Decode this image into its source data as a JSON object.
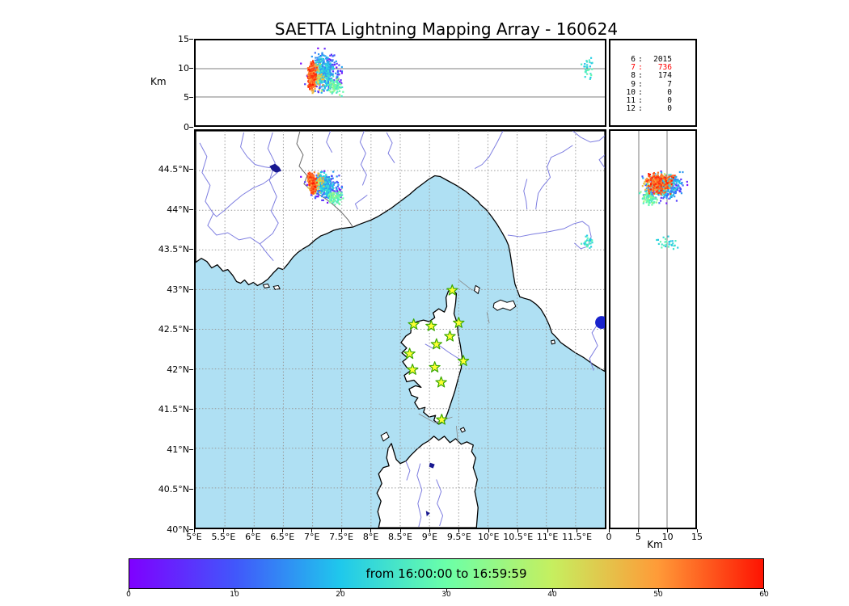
{
  "title": "SAETTA Lightning Mapping Array - 160624",
  "top_panel": {
    "ylabel": "Km",
    "ytick_values": [
      15,
      10,
      5,
      0
    ],
    "grid_alts": [
      5,
      10
    ],
    "alt_range": [
      0,
      15
    ]
  },
  "stats_panel": {
    "rows": [
      {
        "label": "6",
        "value": "2015",
        "color": "#000000"
      },
      {
        "label": "7",
        "value": "736",
        "color": "#ff0000"
      },
      {
        "label": "8",
        "value": "174",
        "color": "#000000"
      },
      {
        "label": "9",
        "value": "7",
        "color": "#000000"
      },
      {
        "label": "10",
        "value": "0",
        "color": "#000000"
      },
      {
        "label": "11",
        "value": "0",
        "color": "#000000"
      },
      {
        "label": "12",
        "value": "0",
        "color": "#000000"
      }
    ]
  },
  "map_panel": {
    "lon_tick_values": [
      5,
      5.5,
      6,
      6.5,
      7,
      7.5,
      8,
      8.5,
      9,
      9.5,
      10,
      10.5,
      11,
      11.5
    ],
    "lon_tick_labels": [
      "5°E",
      "5.5°E",
      "6°E",
      "6.5°E",
      "7°E",
      "7.5°E",
      "8°E",
      "8.5°E",
      "9°E",
      "9.5°E",
      "10°E",
      "10.5°E",
      "11°E",
      "11.5°E"
    ],
    "lat_tick_values": [
      44.5,
      44,
      43.5,
      43,
      42.5,
      42,
      41.5,
      41,
      40.5,
      40
    ],
    "lat_tick_labels": [
      "44.5°N",
      "44°N",
      "43.5°N",
      "43°N",
      "42.5°N",
      "42°N",
      "41.5°N",
      "41°N",
      "40.5°N",
      "40°N"
    ],
    "lon_range": [
      5,
      12
    ],
    "lat_range": [
      40,
      45
    ],
    "sea_color": "#afe0f3",
    "land_color": "#ffffff",
    "coast_color": "#000000",
    "river_color": "#7d7de0",
    "border_color": "#666666",
    "grid_color": "#999999",
    "lake_color": "#1822cc",
    "station_fill": "#ffff33",
    "station_stroke": "#39a800"
  },
  "right_panel": {
    "xlabel": "Km",
    "xtick_values": [
      0,
      5,
      10,
      15
    ],
    "grid_alts": [
      5,
      10
    ],
    "alt_range": [
      0,
      15
    ]
  },
  "colorbar": {
    "label": "from 16:00:00 to 16:59:59",
    "tick_values": [
      0,
      10,
      20,
      30,
      40,
      50,
      60
    ],
    "range": [
      0,
      60
    ],
    "stops": [
      "#7f00ff",
      "#4157fb",
      "#1fc8ec",
      "#6bffa8",
      "#c6ef5f",
      "#ff9b38",
      "#fe1302"
    ]
  },
  "chart_data": {
    "type": "scatter",
    "title": "SAETTA Lightning Mapping Array - 160624",
    "date_label": "160624",
    "time_window": {
      "from": "16:00:00",
      "to": "16:59:59"
    },
    "colorbar": {
      "label": "from 16:00:00 to 16:59:59",
      "units_range": [
        0,
        60
      ]
    },
    "panels": [
      {
        "name": "altitude-vs-longitude",
        "ylabel": "Km",
        "xlim": [
          5,
          12
        ],
        "ylim": [
          0,
          15
        ],
        "grid_alts": [
          5,
          10
        ]
      },
      {
        "name": "map",
        "xlim": [
          5,
          12
        ],
        "ylim": [
          40,
          45
        ],
        "grid_step_deg": 0.5
      },
      {
        "name": "altitude-vs-latitude",
        "xlabel": "Km",
        "xlim": [
          0,
          15
        ],
        "ylim": [
          40,
          45
        ],
        "grid_alts": [
          5,
          10
        ]
      }
    ],
    "sources_by_station_count": {
      "6": 2015,
      "7": 736,
      "8": 174,
      "9": 7,
      "10": 0,
      "11": 0,
      "12": 0
    },
    "stations_lonlat": [
      [
        9.39,
        42.99
      ],
      [
        8.73,
        42.56
      ],
      [
        9.03,
        42.54
      ],
      [
        9.5,
        42.58
      ],
      [
        9.35,
        42.41
      ],
      [
        9.12,
        42.31
      ],
      [
        8.66,
        42.19
      ],
      [
        9.58,
        42.1
      ],
      [
        8.71,
        41.99
      ],
      [
        9.09,
        42.02
      ],
      [
        9.2,
        41.83
      ],
      [
        9.21,
        41.36
      ]
    ],
    "clusters": [
      {
        "name": "storm-early-purple",
        "n": 40,
        "lon": [
          7.18,
          0.16
        ],
        "lat": [
          44.31,
          0.11
        ],
        "alt": [
          4.5,
          13.8
        ],
        "t": [
          0,
          8
        ]
      },
      {
        "name": "storm-purple-knot",
        "n": 14,
        "lon": [
          7.45,
          0.03
        ],
        "lat": [
          44.22,
          0.03
        ],
        "alt": [
          6.5,
          10
        ],
        "t": [
          0,
          6
        ]
      },
      {
        "name": "storm-blue",
        "n": 150,
        "lon": [
          7.22,
          0.11
        ],
        "lat": [
          44.3,
          0.08
        ],
        "alt": [
          5,
          13.4
        ],
        "t": [
          5,
          18
        ]
      },
      {
        "name": "storm-cyan-north",
        "n": 150,
        "lon": [
          7.14,
          0.06
        ],
        "lat": [
          44.36,
          0.05
        ],
        "alt": [
          6.5,
          12.8
        ],
        "t": [
          13,
          26
        ]
      },
      {
        "name": "storm-cyan-south",
        "n": 130,
        "lon": [
          7.24,
          0.055
        ],
        "lat": [
          44.27,
          0.05
        ],
        "alt": [
          6,
          12
        ],
        "t": [
          14,
          27
        ]
      },
      {
        "name": "storm-tail-green",
        "n": 80,
        "lon": [
          7.4,
          0.055
        ],
        "lat": [
          44.16,
          0.04
        ],
        "alt": [
          5,
          8.5
        ],
        "t": [
          24,
          36
        ]
      },
      {
        "name": "tuscany-cell",
        "n": 30,
        "lon": [
          11.71,
          0.045
        ],
        "lat": [
          43.59,
          0.035
        ],
        "alt": [
          8,
          12.5
        ],
        "t": [
          18,
          32
        ]
      },
      {
        "name": "storm-orange",
        "n": 70,
        "lon": [
          7.06,
          0.07
        ],
        "lat": [
          44.33,
          0.06
        ],
        "alt": [
          5.5,
          11
        ],
        "t": [
          37,
          49
        ]
      },
      {
        "name": "storm-red-north",
        "n": 130,
        "lon": [
          6.97,
          0.028
        ],
        "lat": [
          44.4,
          0.04
        ],
        "alt": [
          6,
          11.5
        ],
        "t": [
          49,
          60
        ]
      },
      {
        "name": "storm-red-south",
        "n": 120,
        "lon": [
          7.005,
          0.028
        ],
        "lat": [
          44.31,
          0.045
        ],
        "alt": [
          6,
          11
        ],
        "t": [
          49,
          60
        ]
      }
    ]
  }
}
